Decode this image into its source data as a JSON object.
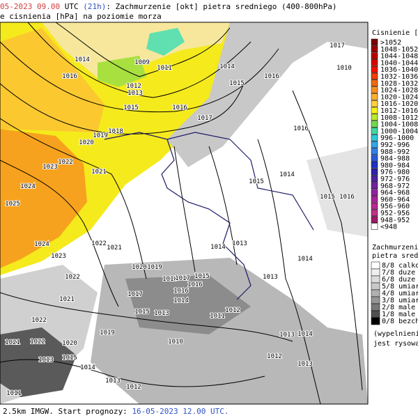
{
  "header": {
    "line1": [
      {
        "text": "05-2023",
        "color": "#d04040"
      },
      {
        "text": " ",
        "color": "#000"
      },
      {
        "text": "09.00",
        "color": "#d04040"
      },
      {
        "text": " UTC ",
        "color": "#000"
      },
      {
        "text": "(21h)",
        "color": "#3050c0"
      },
      {
        "text": ": Zachmurzenie [okt] pietra sredniego (400-800hPa)",
        "color": "#000"
      }
    ],
    "line2": "e cisnienia [hPa] na poziomie morza"
  },
  "footer": [
    {
      "text": "2.5km IMGW. Start prognozy: ",
      "color": "#000"
    },
    {
      "text": "16-05-2023",
      "color": "#3050c0"
    },
    {
      "text": " ",
      "color": "#000"
    },
    {
      "text": "12.00",
      "color": "#3050c0"
    },
    {
      "text": " UTC.",
      "color": "#3050c0"
    }
  ],
  "pressure_legend": {
    "title": "Cisnienie [hP",
    "items": [
      {
        "label": ">1052",
        "color": "#7a0000"
      },
      {
        "label": "1048-1052",
        "color": "#9a0000"
      },
      {
        "label": "1044-1048",
        "color": "#b80000"
      },
      {
        "label": "1040-1044",
        "color": "#d80000"
      },
      {
        "label": "1036-1040",
        "color": "#f01000"
      },
      {
        "label": "1032-1036",
        "color": "#f04000"
      },
      {
        "label": "1028-1032",
        "color": "#f06a10"
      },
      {
        "label": "1024-1028",
        "color": "#f79020"
      },
      {
        "label": "1020-1024",
        "color": "#fbb030"
      },
      {
        "label": "1016-1020",
        "color": "#fdd040"
      },
      {
        "label": "1012-1016",
        "color": "#f5f018"
      },
      {
        "label": "1008-1012",
        "color": "#b8e830"
      },
      {
        "label": "1004-1008",
        "color": "#70d850"
      },
      {
        "label": "1000-1004",
        "color": "#40d8a0"
      },
      {
        "label": "996-1000",
        "color": "#30c8d8"
      },
      {
        "label": "992-996",
        "color": "#30a8e8"
      },
      {
        "label": "988-992",
        "color": "#3080e8"
      },
      {
        "label": "984-988",
        "color": "#2858d8"
      },
      {
        "label": "980-984",
        "color": "#2030c0"
      },
      {
        "label": "976-980",
        "color": "#3020a8"
      },
      {
        "label": "972-976",
        "color": "#5020a0"
      },
      {
        "label": "968-972",
        "color": "#7020a0"
      },
      {
        "label": "964-968",
        "color": "#9020a0"
      },
      {
        "label": "960-964",
        "color": "#a82098"
      },
      {
        "label": "956-960",
        "color": "#b82890"
      },
      {
        "label": "952-956",
        "color": "#c03088"
      },
      {
        "label": "948-952",
        "color": "#a01868"
      },
      {
        "label": "<948",
        "color": "#ffffff"
      }
    ]
  },
  "cloud_legend": {
    "title": [
      "Zachmurzenie",
      "pietra sredniego"
    ],
    "items": [
      {
        "label": "8/8 calkow",
        "color": "#ffffff"
      },
      {
        "label": "7/8 duze",
        "color": "#f0f0f0"
      },
      {
        "label": "6/8 duze",
        "color": "#dcdcdc"
      },
      {
        "label": "5/8 umiar",
        "color": "#c8c8c8"
      },
      {
        "label": "4/8 umiar",
        "color": "#b0b0b0"
      },
      {
        "label": "3/8 umiar",
        "color": "#969696"
      },
      {
        "label": "2/8 male",
        "color": "#787878"
      },
      {
        "label": "1/8 male",
        "color": "#505050"
      },
      {
        "label": "0/8 bezch",
        "color": "#000000"
      }
    ],
    "note": [
      "(wypelnieni",
      "jest rysowa"
    ]
  },
  "isobar_labels": [
    "1014",
    "1009",
    "1011",
    "1014",
    "1017",
    "1010",
    "1016",
    "1012",
    "1013",
    "1015",
    "1016",
    "1015",
    "1016",
    "1017",
    "1016",
    "1019",
    "1018",
    "1020",
    "1023",
    "1022",
    "1021",
    "1024",
    "1014",
    "1015",
    "1015",
    "1016",
    "1025",
    "1014",
    "1013",
    "1024",
    "1022",
    "1021",
    "1023",
    "1014",
    "1020",
    "1019",
    "1022",
    "1013",
    "1018",
    "1017",
    "1016",
    "1015",
    "1021",
    "1017",
    "1016",
    "1014",
    "1015",
    "1013",
    "1012",
    "1011",
    "1022",
    "1010",
    "1019",
    "1021",
    "1022",
    "1020",
    "1014",
    "1013",
    "1013",
    "1015",
    "1014",
    "1012",
    "1013",
    "1013",
    "1012",
    "1011"
  ]
}
